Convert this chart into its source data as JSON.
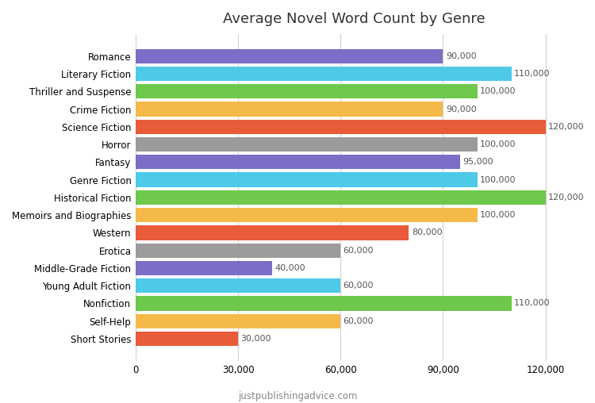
{
  "title": "Average Novel Word Count by Genre",
  "footer": "justpublishingadvice.com",
  "categories": [
    "Romance",
    "Literary Fiction",
    "Thriller and Suspense",
    "Crime Fiction",
    "Science Fiction",
    "Horror",
    "Fantasy",
    "Genre Fiction",
    "Historical Fiction",
    "Memoirs and Biographies",
    "Western",
    "Erotica",
    "Middle-Grade Fiction",
    "Young Adult Fiction",
    "Nonfiction",
    "Self-Help",
    "Short Stories"
  ],
  "values": [
    90000,
    110000,
    100000,
    90000,
    120000,
    100000,
    95000,
    100000,
    120000,
    100000,
    80000,
    60000,
    40000,
    60000,
    110000,
    60000,
    30000
  ],
  "colors": [
    "#7B6EC6",
    "#4EC9E8",
    "#6DC84B",
    "#F5B94A",
    "#E85C3A",
    "#9B9B9B",
    "#7B6EC6",
    "#4EC9E8",
    "#6DC84B",
    "#F5B94A",
    "#E85C3A",
    "#9B9B9B",
    "#7B6EC6",
    "#4EC9E8",
    "#6DC84B",
    "#F5B94A",
    "#E85C3A"
  ],
  "xlim": [
    0,
    128000
  ],
  "xticks": [
    0,
    30000,
    60000,
    90000,
    120000
  ],
  "background_color": "#ffffff",
  "grid_color": "#d0d0d0",
  "bar_height": 0.82,
  "label_fontsize": 8,
  "title_fontsize": 13,
  "ylabel_fontsize": 8.5,
  "xlabel_fontsize": 8.5
}
